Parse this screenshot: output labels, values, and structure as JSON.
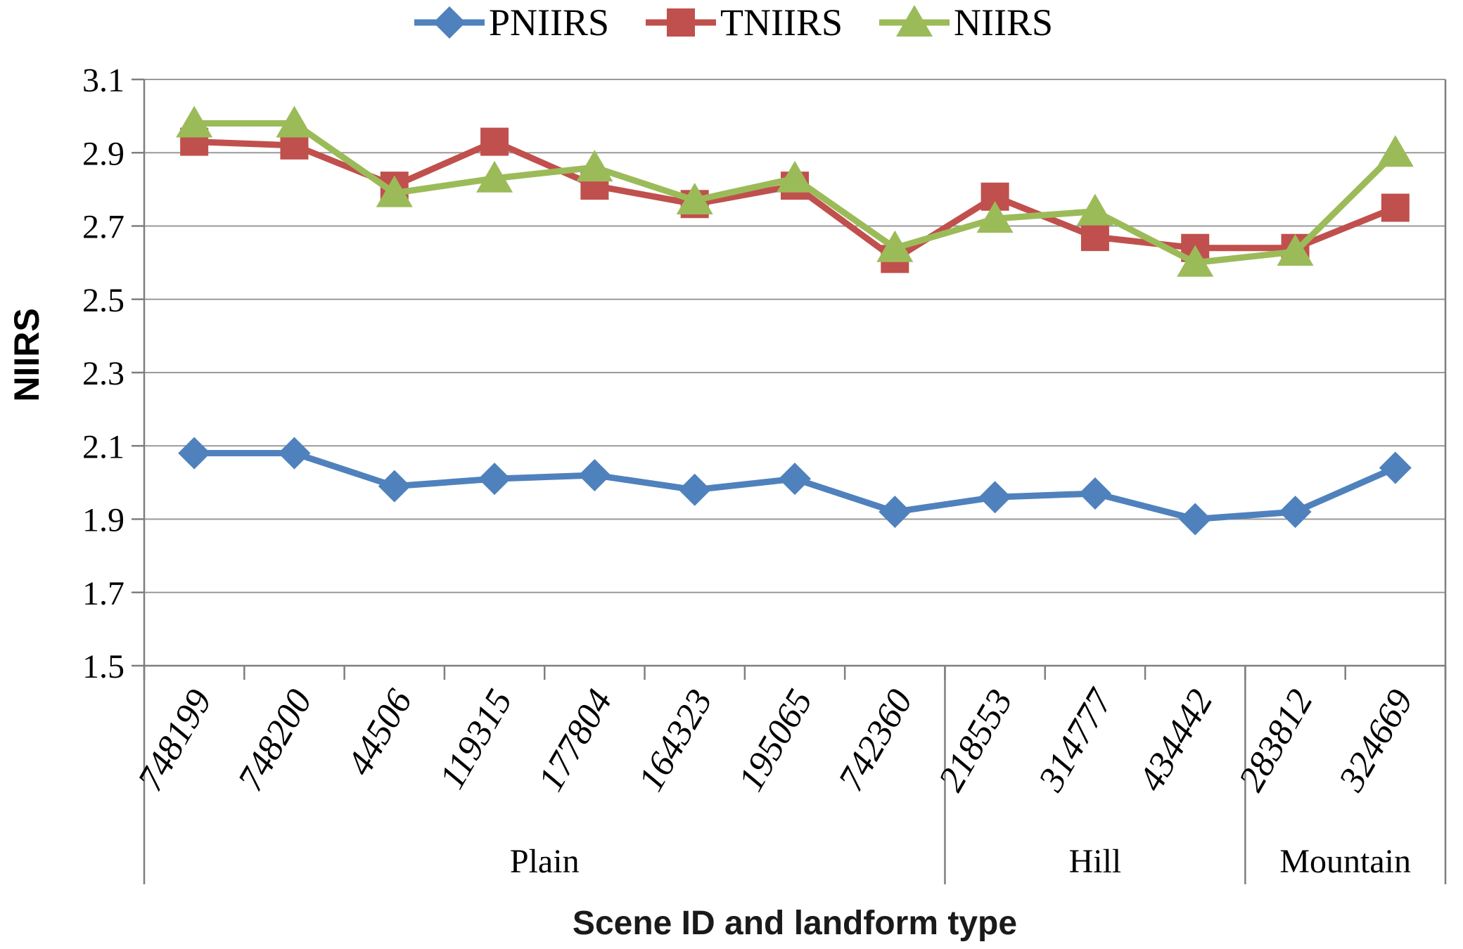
{
  "chart_data": {
    "type": "line",
    "title": "",
    "xlabel": "Scene ID and landform type",
    "ylabel": "NIIRS",
    "ylim": [
      1.5,
      3.1
    ],
    "y_ticks": [
      3.1,
      2.9,
      2.7,
      2.5,
      2.3,
      2.1,
      1.9,
      1.7,
      1.5
    ],
    "grid": true,
    "legend_position": "top",
    "categories": [
      "748199",
      "748200",
      "44506",
      "119315",
      "177804",
      "164323",
      "195065",
      "742360",
      "218553",
      "314777",
      "434442",
      "283812",
      "324669"
    ],
    "groups": [
      {
        "label": "Plain",
        "count": 8
      },
      {
        "label": "Hill",
        "count": 3
      },
      {
        "label": "Mountain",
        "count": 2
      }
    ],
    "series": [
      {
        "name": "PNIIRS",
        "marker": "diamond",
        "color": "#4F81BD",
        "values": [
          2.08,
          2.08,
          1.99,
          2.01,
          2.02,
          1.98,
          2.01,
          1.92,
          1.96,
          1.97,
          1.9,
          1.92,
          2.04
        ]
      },
      {
        "name": "TNIIRS",
        "marker": "square",
        "color": "#C0504D",
        "values": [
          2.93,
          2.92,
          2.81,
          2.93,
          2.81,
          2.76,
          2.81,
          2.61,
          2.78,
          2.67,
          2.64,
          2.64,
          2.75
        ]
      },
      {
        "name": "NIIRS",
        "marker": "triangle",
        "color": "#9BBB59",
        "values": [
          2.98,
          2.98,
          2.79,
          2.83,
          2.86,
          2.77,
          2.83,
          2.64,
          2.72,
          2.74,
          2.6,
          2.63,
          2.9
        ]
      }
    ]
  },
  "legend": {
    "items": [
      {
        "label": "PNIIRS",
        "marker": "diamond",
        "color": "#4F81BD"
      },
      {
        "label": "TNIIRS",
        "marker": "square",
        "color": "#C0504D"
      },
      {
        "label": "NIIRS",
        "marker": "triangle",
        "color": "#9BBB59"
      }
    ]
  },
  "styles": {
    "grid_color": "#9a9a9a",
    "axis_color": "#7f7f7f",
    "text_color": "#000000",
    "background": "#ffffff"
  }
}
